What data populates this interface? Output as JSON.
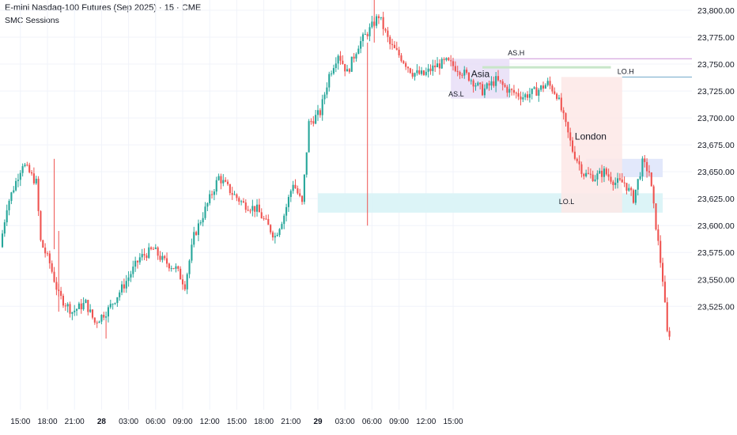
{
  "header": {
    "title": "E-mini Nasdaq-100 Futures (Sep 2025) · 15 · CME",
    "indicator": "SMC Sessions"
  },
  "colors": {
    "up": "#26a69a",
    "down": "#ef5350",
    "grid": "#f0f3fa",
    "axis_text": "#131722",
    "asia_box": "#e8def7",
    "london_box": "#fde7e6",
    "lo_range": "#d8f3f6",
    "lo_small_box": "#dfe6fb",
    "as_h_line": "#ce93d8",
    "lo_h_line": "#6fa8c9",
    "green_line": "#c8e6c9"
  },
  "chart_data": {
    "type": "candlestick",
    "symbol": "E-mini Nasdaq-100 Futures (Sep 2025)",
    "timeframe": "15",
    "exchange": "CME",
    "y_ticks": [
      "23,800.00",
      "23,775.00",
      "23,750.00",
      "23,725.00",
      "23,700.00",
      "23,675.00",
      "23,650.00",
      "23,625.00",
      "23,600.00",
      "23,575.00",
      "23,550.00",
      "23,525.00"
    ],
    "y_tick_values": [
      23800,
      23775,
      23750,
      23725,
      23700,
      23675,
      23650,
      23625,
      23600,
      23575,
      23550,
      23525
    ],
    "ylim": [
      23500,
      23812
    ],
    "x_ticks": [
      {
        "label": "15:00",
        "bold": false
      },
      {
        "label": "18:00",
        "bold": false
      },
      {
        "label": "21:00",
        "bold": false
      },
      {
        "label": "28",
        "bold": true
      },
      {
        "label": "03:00",
        "bold": false
      },
      {
        "label": "06:00",
        "bold": false
      },
      {
        "label": "09:00",
        "bold": false
      },
      {
        "label": "12:00",
        "bold": false
      },
      {
        "label": "15:00",
        "bold": false
      },
      {
        "label": "18:00",
        "bold": false
      },
      {
        "label": "21:00",
        "bold": false
      },
      {
        "label": "29",
        "bold": true
      },
      {
        "label": "03:00",
        "bold": false
      },
      {
        "label": "06:00",
        "bold": false
      },
      {
        "label": "09:00",
        "bold": false
      },
      {
        "label": "12:00",
        "bold": false
      },
      {
        "label": "15:00",
        "bold": false
      }
    ],
    "bars_per_tick": 12,
    "first_tick_bar_index": 8,
    "sessions": [
      {
        "name": "Asia",
        "high_label": "AS.H",
        "low_label": "AS.L",
        "start_bar": 199,
        "end_bar": 225,
        "high": 23755,
        "low": 23718
      },
      {
        "name": "London",
        "high_label": "LO.H",
        "low_label": "LO.L",
        "start_bar": 248,
        "end_bar": 275,
        "high": 23738,
        "low": 23612
      }
    ],
    "levels": [
      {
        "label": "AS.H",
        "value": 23755,
        "from_bar": 225
      },
      {
        "label": "LO.H",
        "value": 23738,
        "from_bar": 275
      }
    ],
    "zones": [
      {
        "name": "lo-range",
        "top": 23630,
        "bottom": 23612,
        "from_bar": 140,
        "to_bar": 293
      },
      {
        "name": "lo-small-box",
        "top": 23662,
        "bottom": 23645,
        "from_bar": 259,
        "to_bar": 293
      }
    ],
    "anchors": [
      {
        "i": 0,
        "p": 23580
      },
      {
        "i": 3,
        "p": 23618
      },
      {
        "i": 10,
        "p": 23658
      },
      {
        "i": 16,
        "p": 23640
      },
      {
        "i": 18,
        "p": 23585
      },
      {
        "i": 22,
        "p": 23565
      },
      {
        "i": 26,
        "p": 23535
      },
      {
        "i": 32,
        "p": 23520
      },
      {
        "i": 38,
        "p": 23528
      },
      {
        "i": 42,
        "p": 23510
      },
      {
        "i": 48,
        "p": 23522
      },
      {
        "i": 55,
        "p": 23545
      },
      {
        "i": 62,
        "p": 23570
      },
      {
        "i": 68,
        "p": 23578
      },
      {
        "i": 72,
        "p": 23568
      },
      {
        "i": 78,
        "p": 23560
      },
      {
        "i": 82,
        "p": 23545
      },
      {
        "i": 86,
        "p": 23590
      },
      {
        "i": 92,
        "p": 23620
      },
      {
        "i": 97,
        "p": 23645
      },
      {
        "i": 103,
        "p": 23630
      },
      {
        "i": 108,
        "p": 23620
      },
      {
        "i": 114,
        "p": 23615
      },
      {
        "i": 118,
        "p": 23602
      },
      {
        "i": 122,
        "p": 23590
      },
      {
        "i": 126,
        "p": 23610
      },
      {
        "i": 130,
        "p": 23640
      },
      {
        "i": 134,
        "p": 23620
      },
      {
        "i": 137,
        "p": 23695
      },
      {
        "i": 142,
        "p": 23705
      },
      {
        "i": 146,
        "p": 23740
      },
      {
        "i": 150,
        "p": 23760
      },
      {
        "i": 154,
        "p": 23742
      },
      {
        "i": 159,
        "p": 23768
      },
      {
        "i": 164,
        "p": 23782
      },
      {
        "i": 168,
        "p": 23795
      },
      {
        "i": 173,
        "p": 23768
      },
      {
        "i": 178,
        "p": 23756
      },
      {
        "i": 183,
        "p": 23742
      },
      {
        "i": 188,
        "p": 23740
      },
      {
        "i": 193,
        "p": 23748
      },
      {
        "i": 198,
        "p": 23752
      },
      {
        "i": 203,
        "p": 23746
      },
      {
        "i": 208,
        "p": 23738
      },
      {
        "i": 214,
        "p": 23725
      },
      {
        "i": 220,
        "p": 23735
      },
      {
        "i": 226,
        "p": 23725
      },
      {
        "i": 232,
        "p": 23720
      },
      {
        "i": 238,
        "p": 23725
      },
      {
        "i": 243,
        "p": 23732
      },
      {
        "i": 247,
        "p": 23722
      },
      {
        "i": 250,
        "p": 23700
      },
      {
        "i": 254,
        "p": 23670
      },
      {
        "i": 259,
        "p": 23648
      },
      {
        "i": 264,
        "p": 23645
      },
      {
        "i": 268,
        "p": 23650
      },
      {
        "i": 273,
        "p": 23640
      },
      {
        "i": 277,
        "p": 23640
      },
      {
        "i": 281,
        "p": 23625
      },
      {
        "i": 285,
        "p": 23658
      },
      {
        "i": 288,
        "p": 23650
      },
      {
        "i": 291,
        "p": 23600
      },
      {
        "i": 294,
        "p": 23550
      },
      {
        "i": 296,
        "p": 23500
      }
    ]
  }
}
